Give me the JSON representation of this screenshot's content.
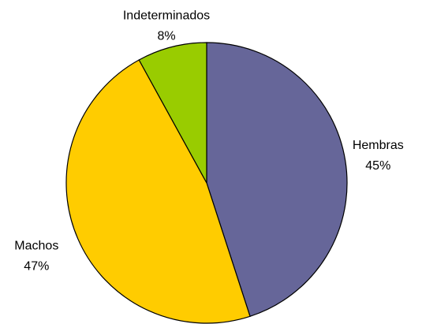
{
  "chart_data": {
    "type": "pie",
    "categories": [
      "Hembras",
      "Machos",
      "Indeterminados"
    ],
    "values": [
      45,
      47,
      8
    ],
    "value_labels": [
      "45%",
      "47%",
      "8%"
    ],
    "colors": [
      "#666699",
      "#ffcc00",
      "#99cc00"
    ]
  }
}
